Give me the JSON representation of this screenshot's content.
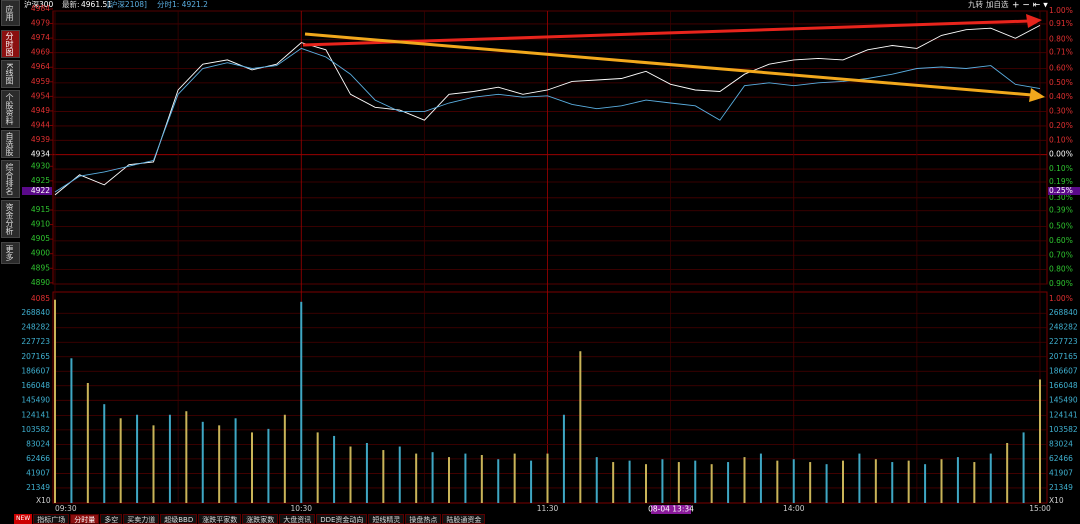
{
  "header": {
    "name": "沪深300",
    "latest_label": "最新:",
    "latest": "4961.51",
    "contract": "[沪深2108]",
    "period": "分时1: 4921.2",
    "right_tools": [
      "九转",
      "加自选"
    ]
  },
  "sidebar": [
    "应用",
    "分时图",
    "K线图",
    "个股资料",
    "自选股",
    "综合排名",
    "资金分析",
    "更多"
  ],
  "bottom_tabs": {
    "badge": "NEW",
    "tabs": [
      "指标广场",
      "分时量",
      "多空",
      "买卖力道",
      "超级BBD",
      "涨跌平家数",
      "涨跌家数",
      "大盘资讯",
      "DDE资金动向",
      "短线精灵",
      "操盘热点",
      "陆股通资金"
    ]
  },
  "chart_data": [
    {
      "type": "line",
      "x": [
        0,
        6,
        12,
        18,
        24,
        30,
        36,
        42,
        48,
        54,
        60,
        66,
        72,
        78,
        84,
        90,
        96,
        102,
        108,
        114,
        120,
        126,
        132,
        138,
        144,
        150,
        156,
        162,
        168,
        174,
        180,
        186,
        192,
        198,
        204,
        210,
        216,
        222,
        228,
        234,
        240
      ],
      "xlim": [
        0,
        240
      ],
      "xticks": [
        {
          "value": 0,
          "label": "09:30"
        },
        {
          "value": 60,
          "label": "10:30"
        },
        {
          "value": 120,
          "label": "11:30"
        },
        {
          "value": 180,
          "label": "14:00"
        },
        {
          "value": 240,
          "label": "15:00"
        }
      ],
      "ylim": [
        4889.6,
        4983.3
      ],
      "yticks": [
        4984,
        4979,
        4974,
        4969,
        4964,
        4959,
        4954,
        4949,
        4944,
        4939,
        4934,
        4930,
        4925,
        4915,
        4910,
        4905,
        4900,
        4895,
        4890
      ],
      "y2lim": [
        -0.9,
        1.0
      ],
      "y2ticks": [
        {
          "value": 1.0,
          "label": "1.00%"
        },
        {
          "value": 0.91,
          "label": "0.91%"
        },
        {
          "value": 0.8,
          "label": "0.80%"
        },
        {
          "value": 0.71,
          "label": "0.71%"
        },
        {
          "value": 0.6,
          "label": "0.60%"
        },
        {
          "value": 0.5,
          "label": "0.50%"
        },
        {
          "value": 0.4,
          "label": "0.40%"
        },
        {
          "value": 0.3,
          "label": "0.30%"
        },
        {
          "value": 0.2,
          "label": "0.20%"
        },
        {
          "value": 0.1,
          "label": "0.10%"
        },
        {
          "value": 0,
          "label": "0.00%"
        },
        {
          "value": -0.1,
          "label": "0.10%"
        },
        {
          "value": -0.19,
          "label": "0.19%"
        },
        {
          "value": -0.3,
          "label": "0.30%"
        },
        {
          "value": -0.39,
          "label": "0.39%"
        },
        {
          "value": -0.5,
          "label": "0.50%"
        },
        {
          "value": -0.6,
          "label": "0.60%"
        },
        {
          "value": -0.7,
          "label": "0.70%"
        },
        {
          "value": -0.8,
          "label": "0.80%"
        },
        {
          "value": -0.9,
          "label": "0.90%"
        }
      ],
      "series": [
        {
          "color": "#ffffff",
          "axis": "y2",
          "values": [
            -0.28,
            -0.14,
            -0.21,
            -0.07,
            -0.05,
            0.45,
            0.63,
            0.66,
            0.59,
            0.63,
            0.78,
            0.73,
            0.42,
            0.33,
            0.31,
            0.24,
            0.42,
            0.44,
            0.47,
            0.42,
            0.45,
            0.51,
            0.52,
            0.53,
            0.58,
            0.49,
            0.45,
            0.44,
            0.56,
            0.63,
            0.66,
            0.67,
            0.66,
            0.73,
            0.76,
            0.74,
            0.83,
            0.87,
            0.88,
            0.81,
            0.9
          ]
        },
        {
          "color": "#5aaee0",
          "axis": "y2",
          "values": [
            -0.26,
            -0.15,
            -0.12,
            -0.08,
            -0.04,
            0.42,
            0.6,
            0.64,
            0.6,
            0.62,
            0.74,
            0.68,
            0.56,
            0.38,
            0.3,
            0.3,
            0.36,
            0.4,
            0.42,
            0.4,
            0.41,
            0.35,
            0.32,
            0.34,
            0.38,
            0.36,
            0.34,
            0.24,
            0.48,
            0.5,
            0.48,
            0.5,
            0.51,
            0.53,
            0.56,
            0.6,
            0.61,
            0.6,
            0.62,
            0.49,
            0.46
          ]
        }
      ],
      "grid": true,
      "crosshair": {
        "time": "08-04 13:34",
        "price": "4922",
        "change": "0.25%"
      }
    },
    {
      "type": "bar",
      "x": [
        0,
        4,
        8,
        12,
        16,
        20,
        24,
        28,
        32,
        36,
        40,
        44,
        48,
        52,
        56,
        60,
        64,
        68,
        72,
        76,
        80,
        84,
        88,
        92,
        96,
        100,
        104,
        108,
        112,
        116,
        120,
        124,
        128,
        132,
        136,
        140,
        144,
        148,
        152,
        156,
        160,
        164,
        168,
        172,
        176,
        180,
        184,
        188,
        192,
        196,
        200,
        204,
        208,
        212,
        216,
        220,
        224,
        228,
        232,
        236,
        240
      ],
      "values": [
        288000,
        205000,
        170000,
        140000,
        120000,
        125000,
        110000,
        125000,
        130000,
        115000,
        110000,
        120000,
        100000,
        105000,
        125000,
        285000,
        100000,
        95000,
        80000,
        85000,
        75000,
        80000,
        70000,
        72000,
        65000,
        70000,
        68000,
        62000,
        70000,
        60000,
        70000,
        125000,
        215000,
        65000,
        58000,
        60000,
        55000,
        62000,
        58000,
        60000,
        55000,
        58000,
        65000,
        70000,
        60000,
        62000,
        58000,
        55000,
        60000,
        70000,
        62000,
        58000,
        60000,
        55000,
        62000,
        65000,
        58000,
        70000,
        85000,
        100000,
        175000
      ],
      "ylim": [
        0,
        290400
      ],
      "yticks": [
        21349,
        41907,
        62466,
        83024,
        103582,
        124141,
        145490,
        166048,
        186607,
        207165,
        227723,
        248282,
        268840
      ],
      "colors": [
        "#c9b458",
        "#3fa7c4"
      ],
      "top_left_label": "4085",
      "top_right_label": "1.00%",
      "unit_label": "X10"
    }
  ]
}
